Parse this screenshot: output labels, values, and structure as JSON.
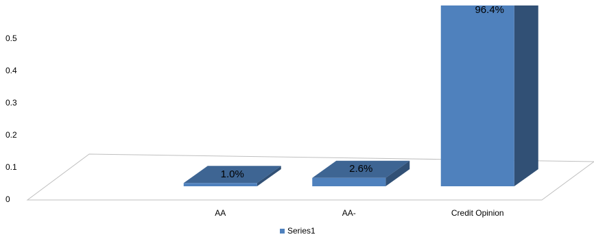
{
  "chart_data": {
    "type": "bar3d",
    "categories": [
      null,
      "AA",
      "AA-",
      "Credit Opinion"
    ],
    "series": [
      {
        "name": "Series1",
        "color": "#4f81bd",
        "values": [
          null,
          0.01,
          0.026,
          0.964
        ],
        "value_labels": [
          null,
          "1.0%",
          "2.6%",
          "96.4%"
        ]
      }
    ],
    "ylim": [
      0,
      0.55
    ],
    "yticks": [
      0,
      0.1,
      0.2,
      0.3,
      0.4,
      0.5
    ],
    "legend": "bottom"
  }
}
